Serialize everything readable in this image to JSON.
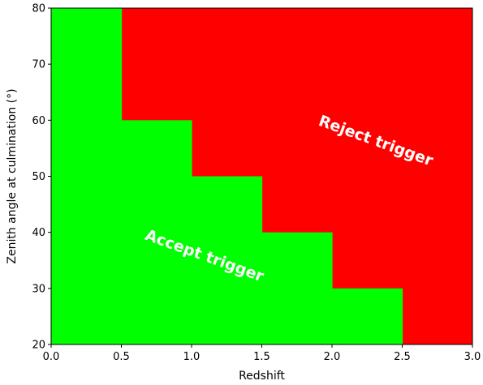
{
  "chart_data": {
    "type": "heatmap",
    "title": "",
    "xlabel": "Redshift",
    "ylabel": "Zenith angle at culmination (°)",
    "xlim": [
      0.0,
      3.0
    ],
    "ylim": [
      20,
      80
    ],
    "xticks": [
      "0.0",
      "0.5",
      "1.0",
      "1.5",
      "2.0",
      "2.5",
      "3.0"
    ],
    "yticks": [
      "20",
      "30",
      "40",
      "50",
      "60",
      "70",
      "80"
    ],
    "grid": false,
    "colors": {
      "accept": "#00ff00",
      "reject": "#ff0000"
    },
    "accept_boundary": [
      {
        "x": [
          0.0,
          0.5
        ],
        "y_max": 80
      },
      {
        "x": [
          0.5,
          1.0
        ],
        "y_max": 60
      },
      {
        "x": [
          1.0,
          1.5
        ],
        "y_max": 50
      },
      {
        "x": [
          1.5,
          2.0
        ],
        "y_max": 40
      },
      {
        "x": [
          2.0,
          2.5
        ],
        "y_max": 30
      },
      {
        "x": [
          2.5,
          3.0
        ],
        "y_max": 20
      }
    ],
    "annotations": {
      "accept": "Accept trigger",
      "reject": "Reject trigger"
    }
  }
}
